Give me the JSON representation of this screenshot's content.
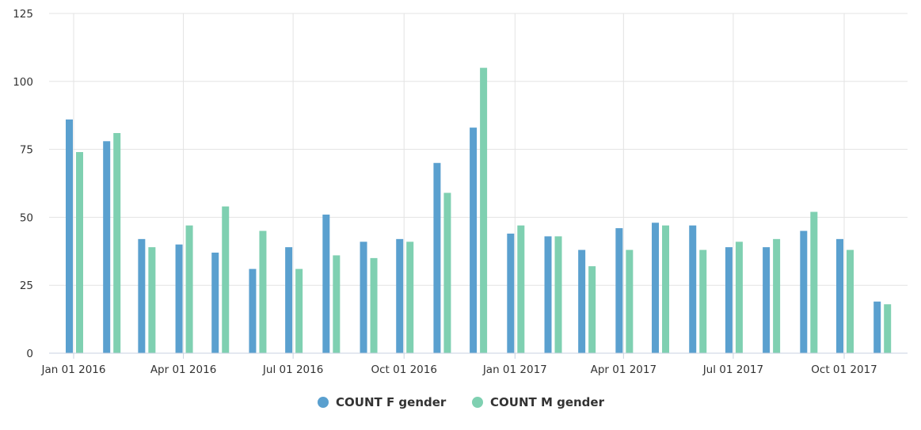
{
  "chart_data": {
    "type": "bar",
    "x": [
      "2016-01",
      "2016-02",
      "2016-03",
      "2016-04",
      "2016-05",
      "2016-06",
      "2016-07",
      "2016-08",
      "2016-09",
      "2016-10",
      "2016-11",
      "2016-12",
      "2017-01",
      "2017-02",
      "2017-03",
      "2017-04",
      "2017-05",
      "2017-06",
      "2017-07",
      "2017-08",
      "2017-09",
      "2017-10",
      "2017-11"
    ],
    "series": [
      {
        "name": "COUNT F gender",
        "color": "#5aa0cf",
        "values": [
          86,
          78,
          42,
          40,
          37,
          31,
          39,
          51,
          41,
          42,
          70,
          83,
          44,
          43,
          38,
          46,
          48,
          47,
          39,
          39,
          45,
          42,
          19
        ]
      },
      {
        "name": "COUNT M gender",
        "color": "#7fd0b1",
        "values": [
          74,
          81,
          39,
          47,
          54,
          45,
          31,
          36,
          35,
          41,
          59,
          105,
          47,
          43,
          32,
          38,
          47,
          38,
          41,
          42,
          52,
          38,
          18
        ]
      }
    ],
    "title": "",
    "xlabel": "",
    "ylabel": "",
    "ylim": [
      0,
      125
    ],
    "yticks": [
      {
        "value": 0,
        "label": "0"
      },
      {
        "value": 25,
        "label": "25"
      },
      {
        "value": 50,
        "label": "50"
      },
      {
        "value": 75,
        "label": "75"
      },
      {
        "value": 100,
        "label": "100"
      },
      {
        "value": 125,
        "label": "125"
      }
    ],
    "xticks": [
      {
        "value": "2016-01-01",
        "label": "Jan 01 2016"
      },
      {
        "value": "2016-04-01",
        "label": "Apr 01 2016"
      },
      {
        "value": "2016-07-01",
        "label": "Jul 01 2016"
      },
      {
        "value": "2016-10-01",
        "label": "Oct 01 2016"
      },
      {
        "value": "2017-01-01",
        "label": "Jan 01 2017"
      },
      {
        "value": "2017-04-01",
        "label": "Apr 01 2017"
      },
      {
        "value": "2017-07-01",
        "label": "Jul 01 2017"
      },
      {
        "value": "2017-10-01",
        "label": "Oct 01 2017"
      }
    ],
    "grid": true,
    "legend": "bottom-center"
  }
}
